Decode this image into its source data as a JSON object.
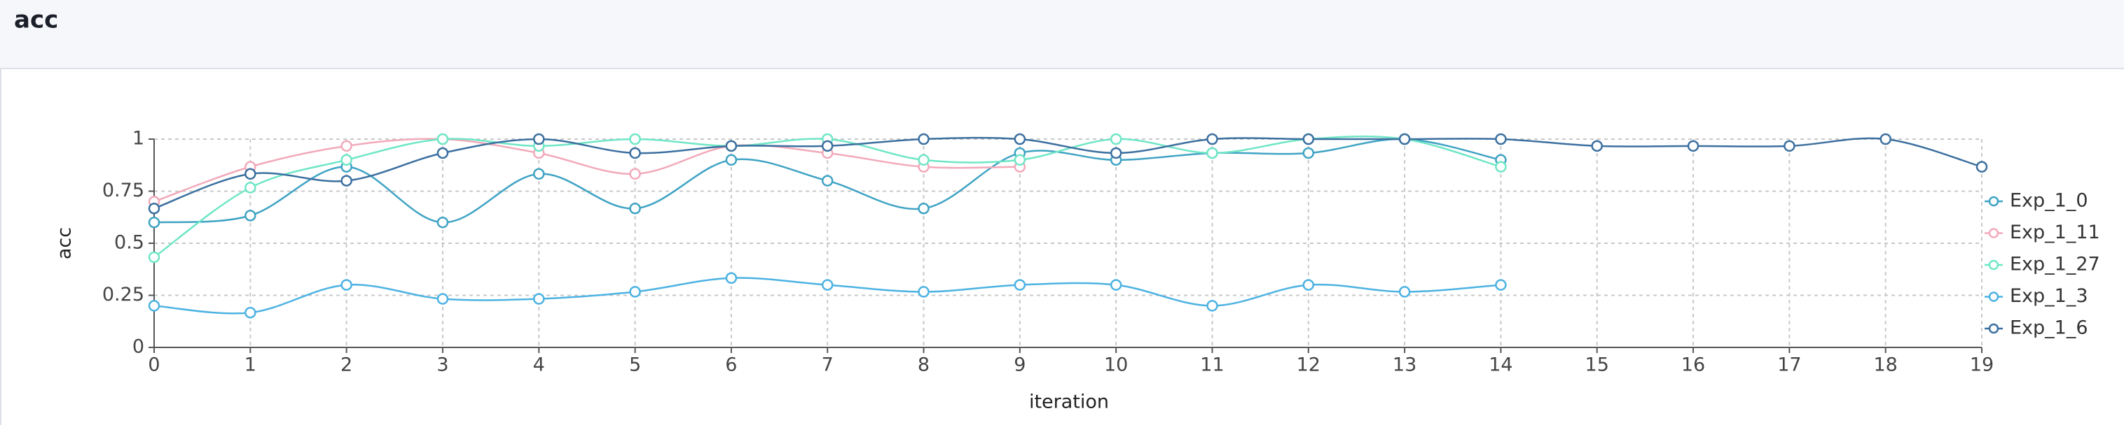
{
  "chart_data": {
    "type": "line",
    "title": "acc",
    "x_label": "iteration",
    "y_label": "acc",
    "x": [
      0,
      1,
      2,
      3,
      4,
      5,
      6,
      7,
      8,
      9,
      10,
      11,
      12,
      13,
      14,
      15,
      16,
      17,
      18,
      19
    ],
    "xlim": [
      0,
      19
    ],
    "xticks": [
      0,
      1,
      2,
      3,
      4,
      5,
      6,
      7,
      8,
      9,
      10,
      11,
      12,
      13,
      14,
      15,
      16,
      17,
      18,
      19
    ],
    "ylim": [
      0,
      1
    ],
    "yticks": [
      0,
      0.25,
      0.5,
      0.75,
      1
    ],
    "grid": true,
    "legend": "right",
    "series": [
      {
        "name": "Exp_1_0",
        "color": "#3fa3c4",
        "values": [
          0.6,
          0.633,
          0.867,
          0.6,
          0.833,
          0.667,
          0.9,
          0.8,
          0.667,
          0.933,
          0.9,
          0.933,
          0.933,
          1,
          0.9,
          null,
          null,
          null,
          null,
          null
        ]
      },
      {
        "name": "Exp_1_11",
        "color": "#f2a9ba",
        "values": [
          0.7,
          0.867,
          0.967,
          1,
          0.933,
          0.833,
          0.967,
          0.933,
          0.867,
          0.867,
          null,
          null,
          null,
          null,
          null,
          null,
          null,
          null,
          null,
          null
        ]
      },
      {
        "name": "Exp_1_27",
        "color": "#6fe6c6",
        "values": [
          0.433,
          0.767,
          0.9,
          1,
          0.967,
          1,
          0.967,
          1,
          0.9,
          0.9,
          1,
          0.933,
          1,
          1,
          0.867,
          null,
          null,
          null,
          null,
          null
        ]
      },
      {
        "name": "Exp_1_3",
        "color": "#4cb2e2",
        "values": [
          0.2,
          0.167,
          0.3,
          0.233,
          0.233,
          0.267,
          0.333,
          0.3,
          0.267,
          0.3,
          0.3,
          0.2,
          0.3,
          0.267,
          0.3,
          null,
          null,
          null,
          null,
          null
        ]
      },
      {
        "name": "Exp_1_6",
        "color": "#3b6f9f",
        "values": [
          0.667,
          0.833,
          0.8,
          0.933,
          1,
          0.933,
          0.967,
          0.967,
          1,
          1,
          0.933,
          1,
          1,
          1,
          1,
          0.967,
          0.967,
          0.967,
          1,
          0.867
        ]
      }
    ]
  }
}
